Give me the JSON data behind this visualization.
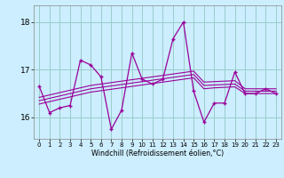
{
  "xlabel": "Windchill (Refroidissement éolien,°C)",
  "background_color": "#cceeff",
  "line_color": "#990099",
  "grid_color": "#99cccc",
  "x_values": [
    0,
    1,
    2,
    3,
    4,
    5,
    6,
    7,
    8,
    9,
    10,
    11,
    12,
    13,
    14,
    15,
    16,
    17,
    18,
    19,
    20,
    21,
    22,
    23
  ],
  "y_main": [
    16.65,
    16.1,
    16.2,
    16.25,
    17.2,
    17.1,
    16.85,
    15.75,
    16.15,
    17.35,
    16.8,
    16.7,
    16.8,
    17.65,
    18.0,
    16.55,
    15.9,
    16.3,
    16.3,
    16.95,
    16.5,
    16.5,
    16.6,
    16.5
  ],
  "y_reg1": [
    16.35,
    16.4,
    16.45,
    16.5,
    16.55,
    16.6,
    16.63,
    16.66,
    16.69,
    16.72,
    16.75,
    16.78,
    16.81,
    16.84,
    16.87,
    16.9,
    16.67,
    16.68,
    16.69,
    16.7,
    16.55,
    16.55,
    16.55,
    16.55
  ],
  "y_reg2": [
    16.28,
    16.33,
    16.38,
    16.43,
    16.48,
    16.53,
    16.56,
    16.59,
    16.62,
    16.65,
    16.68,
    16.71,
    16.74,
    16.77,
    16.8,
    16.83,
    16.6,
    16.62,
    16.63,
    16.64,
    16.5,
    16.5,
    16.5,
    16.5
  ],
  "y_reg3": [
    16.42,
    16.47,
    16.52,
    16.57,
    16.62,
    16.67,
    16.7,
    16.73,
    16.76,
    16.79,
    16.82,
    16.85,
    16.88,
    16.91,
    16.94,
    16.97,
    16.74,
    16.75,
    16.76,
    16.77,
    16.6,
    16.6,
    16.6,
    16.6
  ],
  "ylim": [
    15.55,
    18.35
  ],
  "yticks": [
    16,
    17,
    18
  ],
  "xtick_labels": [
    "0",
    "1",
    "2",
    "3",
    "4",
    "5",
    "6",
    "7",
    "8",
    "9",
    "10",
    "11",
    "12",
    "13",
    "14",
    "15",
    "16",
    "17",
    "18",
    "19",
    "20",
    "21",
    "22",
    "23"
  ]
}
